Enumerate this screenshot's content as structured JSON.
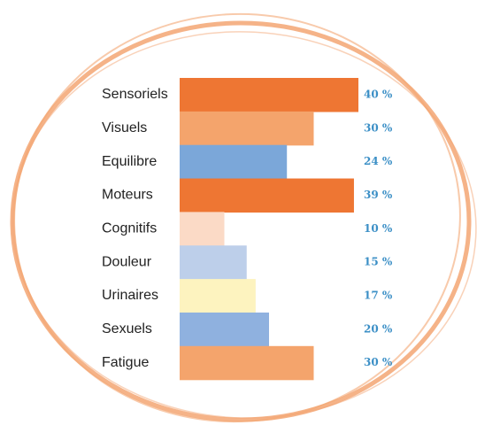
{
  "chart_data": {
    "type": "bar",
    "categories": [
      "Sensoriels",
      "Visuels",
      "Equilibre",
      "Moteurs",
      "Cognitifs",
      "Douleur",
      "Urinaires",
      "Sexuels",
      "Fatigue"
    ],
    "values": [
      40,
      30,
      24,
      39,
      10,
      15,
      17,
      20,
      30
    ],
    "value_labels": [
      "40 %",
      "30 %",
      "24 %",
      "39 %",
      "10 %",
      "15 %",
      "17 %",
      "20 %",
      "30 %"
    ],
    "colors": [
      "#ee7633",
      "#f4a46c",
      "#7ba7d9",
      "#ee7633",
      "#fbdac6",
      "#bdcfea",
      "#fdf3bf",
      "#8fb1df",
      "#f4a46c"
    ]
  }
}
